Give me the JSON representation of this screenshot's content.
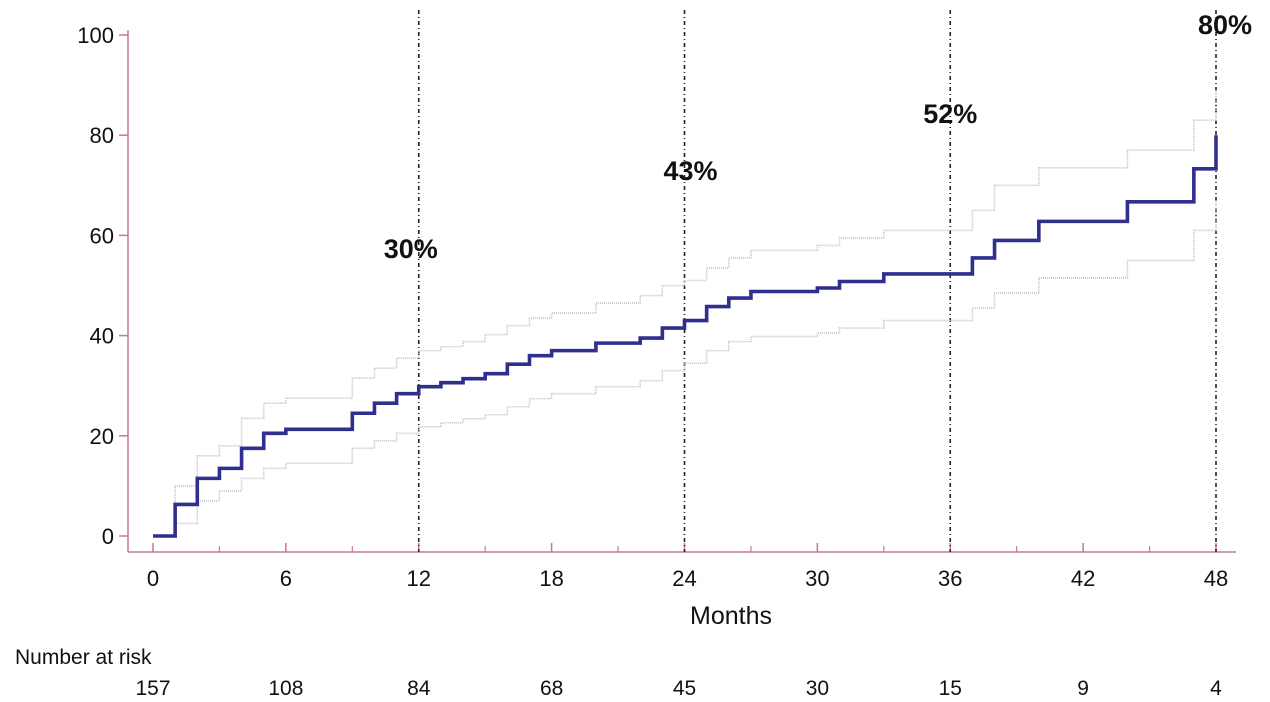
{
  "chart_data": {
    "type": "line",
    "xlabel": "Months",
    "ylabel": "",
    "xlim": [
      0,
      48
    ],
    "ylim": [
      0,
      100
    ],
    "x_ticks": [
      "0",
      "6",
      "12",
      "18",
      "24",
      "30",
      "36",
      "42",
      "48"
    ],
    "y_ticks": [
      "0",
      "20",
      "40",
      "60",
      "80",
      "100"
    ],
    "grid": false,
    "step": true,
    "series": [
      {
        "role": "estimate",
        "color": "#2e2f8f",
        "x": [
          0,
          1,
          2,
          3,
          4,
          5,
          6,
          9,
          10,
          11,
          12,
          13,
          14,
          15,
          16,
          17,
          18,
          20,
          22,
          23,
          24,
          25,
          26,
          27,
          30,
          31,
          33,
          36,
          37,
          38,
          40,
          42,
          44,
          46,
          47,
          48
        ],
        "y": [
          0,
          6.3,
          11.5,
          13.5,
          17.5,
          20.5,
          21.3,
          24.5,
          26.5,
          28.4,
          29.8,
          30.6,
          31.4,
          32.4,
          34.3,
          36,
          37,
          38.5,
          39.5,
          41.5,
          43,
          45.8,
          47.5,
          48.8,
          49.5,
          50.8,
          52.3,
          52.3,
          55.5,
          59,
          62.8,
          62.8,
          66.7,
          66.7,
          73.3,
          80
        ]
      },
      {
        "role": "upper-ci",
        "color": "#c4c4c4",
        "x": [
          0,
          1,
          2,
          3,
          4,
          5,
          6,
          9,
          10,
          11,
          12,
          13,
          14,
          15,
          16,
          17,
          18,
          20,
          22,
          23,
          24,
          25,
          26,
          27,
          30,
          31,
          33,
          36,
          37,
          38,
          40,
          42,
          44,
          46,
          47,
          48
        ],
        "y": [
          0,
          10,
          16,
          18,
          23.5,
          26.5,
          27.5,
          31.5,
          33.5,
          35.5,
          37,
          37.8,
          38.8,
          40.2,
          42,
          43.5,
          44.5,
          46.5,
          48,
          50,
          51,
          53.5,
          55.5,
          57,
          58,
          59.5,
          61,
          61,
          65,
          70,
          73.5,
          73.5,
          77,
          77,
          83,
          89
        ]
      },
      {
        "role": "lower-ci",
        "color": "#c4c4c4",
        "x": [
          0,
          1,
          2,
          3,
          4,
          5,
          6,
          9,
          10,
          11,
          12,
          13,
          14,
          15,
          16,
          17,
          18,
          20,
          22,
          23,
          24,
          25,
          26,
          27,
          30,
          31,
          33,
          36,
          37,
          38,
          40,
          42,
          44,
          46,
          47,
          48
        ],
        "y": [
          0,
          2.5,
          7,
          9,
          11.5,
          13.5,
          14.5,
          17.5,
          19,
          20.5,
          21.8,
          22.6,
          23.4,
          24.2,
          25.8,
          27.4,
          28.4,
          29.8,
          31,
          33,
          34.5,
          37,
          38.8,
          39.8,
          40.5,
          41.5,
          43,
          43,
          45.5,
          48.5,
          51.5,
          51.5,
          55,
          55,
          61,
          67
        ]
      }
    ],
    "reference_lines": [
      12,
      24,
      36,
      48
    ],
    "annotations": [
      {
        "x": 12,
        "y": 29.8,
        "label": "30%"
      },
      {
        "x": 24,
        "y": 43,
        "label": "43%"
      },
      {
        "x": 36,
        "y": 52.3,
        "label": "52%"
      },
      {
        "x": 48,
        "y": 80,
        "label": "80%"
      }
    ],
    "risk_table": {
      "label": "Number at risk",
      "x": [
        0,
        6,
        12,
        18,
        24,
        30,
        36,
        42,
        48
      ],
      "values": [
        "157",
        "108",
        "84",
        "68",
        "45",
        "30",
        "15",
        "9",
        "4"
      ]
    }
  }
}
